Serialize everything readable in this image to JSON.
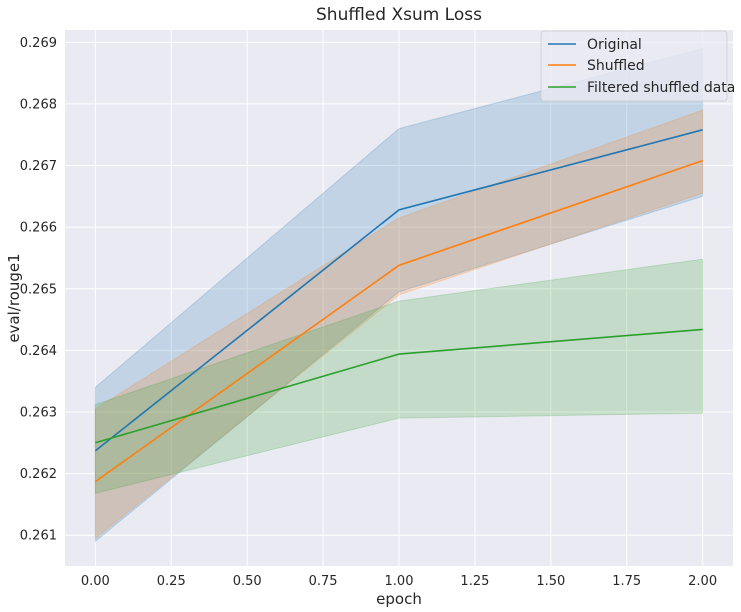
{
  "chart_data": {
    "type": "line",
    "title": "Shuffled Xsum Loss",
    "xlabel": "epoch",
    "ylabel": "eval/rouge1",
    "x": [
      0,
      1,
      2
    ],
    "xlim": [
      -0.1,
      2.1
    ],
    "ylim": [
      0.2605,
      0.2692
    ],
    "xticks": [
      "0.00",
      "0.25",
      "0.50",
      "0.75",
      "1.00",
      "1.25",
      "1.50",
      "1.75",
      "2.00"
    ],
    "yticks": [
      "0.261",
      "0.262",
      "0.263",
      "0.264",
      "0.265",
      "0.266",
      "0.267",
      "0.268",
      "0.269"
    ],
    "grid": true,
    "legend_position": "top-right",
    "series": [
      {
        "name": "Original",
        "color": "#1f77b4",
        "values": [
          0.26237,
          0.26628,
          0.26758
        ],
        "lower": [
          0.2609,
          0.26495,
          0.2665
        ],
        "upper": [
          0.2634,
          0.2676,
          0.2689
        ]
      },
      {
        "name": "Shuffled",
        "color": "#ff7f0e",
        "values": [
          0.26187,
          0.26538,
          0.26708
        ],
        "lower": [
          0.26095,
          0.2649,
          0.26655
        ],
        "upper": [
          0.26305,
          0.26615,
          0.2679
        ]
      },
      {
        "name": "Filtered shuffled data",
        "color": "#2ca02c",
        "values": [
          0.2625,
          0.26394,
          0.26434
        ],
        "lower": [
          0.26168,
          0.2629,
          0.26298
        ],
        "upper": [
          0.26312,
          0.2648,
          0.26548
        ]
      }
    ]
  }
}
